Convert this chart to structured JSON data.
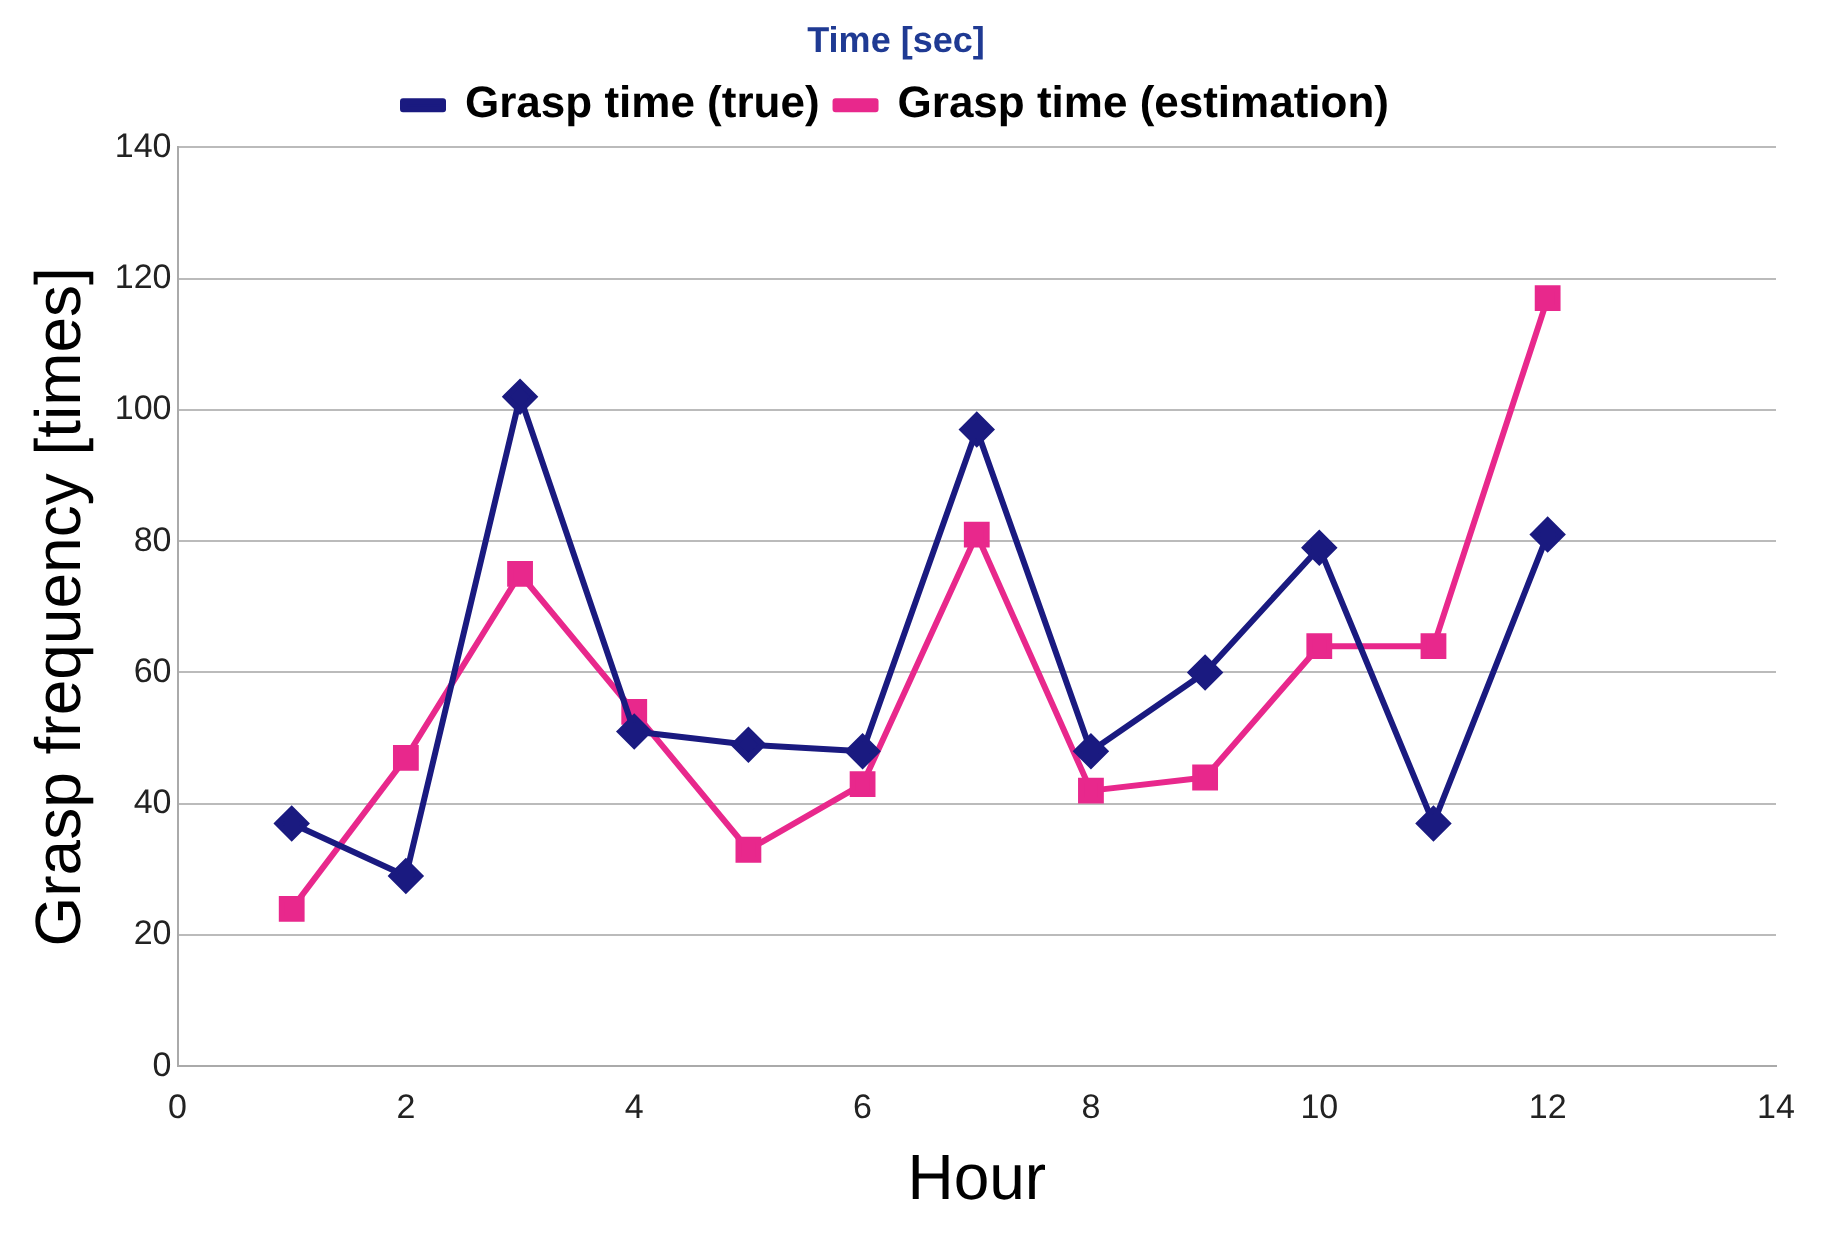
{
  "chart_data": {
    "type": "line",
    "title": "Time [sec]",
    "xlabel": "Hour",
    "ylabel": "Grasp frequency [times]",
    "x": [
      1,
      2,
      3,
      4,
      5,
      6,
      7,
      8,
      9,
      10,
      11,
      12
    ],
    "series": [
      {
        "name": "Grasp time (true)",
        "color": "#1a1a80",
        "marker": "diamond",
        "values": [
          37,
          29,
          102,
          51,
          49,
          48,
          97,
          48,
          60,
          79,
          37,
          81
        ]
      },
      {
        "name": "Grasp time (estimation)",
        "color": "#e8288c",
        "marker": "square",
        "values": [
          24,
          47,
          75,
          54,
          33,
          43,
          81,
          42,
          44,
          64,
          64,
          117
        ]
      }
    ],
    "xlim": [
      0,
      14
    ],
    "xticks": [
      0,
      2,
      4,
      6,
      8,
      10,
      12,
      14
    ],
    "ylim": [
      0,
      140
    ],
    "yticks": [
      0,
      20,
      40,
      60,
      80,
      100,
      120,
      140
    ],
    "grid": "y",
    "legend": "top",
    "line_style": "solid"
  }
}
